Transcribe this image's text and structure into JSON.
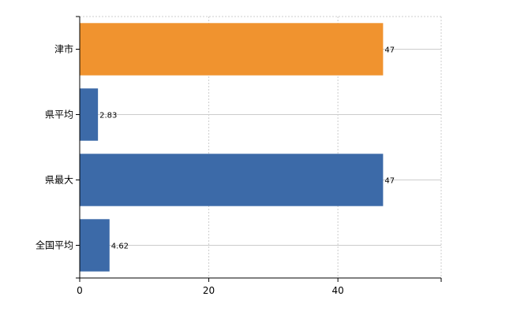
{
  "chart_data": {
    "type": "bar",
    "orientation": "horizontal",
    "categories": [
      "津市",
      "県平均",
      "県最大",
      "全国平均"
    ],
    "values": [
      47,
      2.83,
      47,
      4.62
    ],
    "value_labels": [
      "47",
      "2.83",
      "47",
      "4.62"
    ],
    "bar_colors": [
      "#f0932f",
      "#3c6aa8",
      "#3c6aa8",
      "#3c6aa8"
    ],
    "xlim": [
      0,
      56
    ],
    "xticks": [
      0,
      20,
      40
    ],
    "xtick_labels": [
      "0",
      "20",
      "40"
    ],
    "grid": true,
    "grid_style": "dashed",
    "legend": "none"
  }
}
